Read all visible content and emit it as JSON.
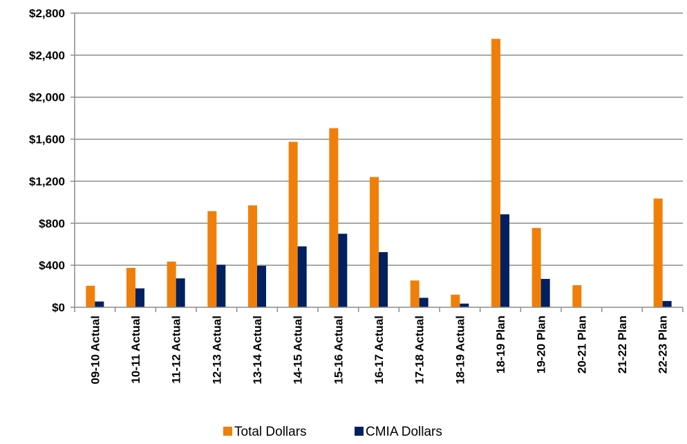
{
  "chart_data": {
    "type": "bar",
    "title": "",
    "xlabel": "",
    "ylabel": "",
    "ylim": [
      0,
      2800
    ],
    "yticks": [
      "$0",
      "$400",
      "$800",
      "$1,200",
      "$1,600",
      "$2,000",
      "$2,400",
      "$2,800"
    ],
    "ytick_values": [
      0,
      400,
      800,
      1200,
      1600,
      2000,
      2400,
      2800
    ],
    "grid": true,
    "legend_position": "bottom",
    "categories": [
      "09-10 Actual",
      "10-11 Actual",
      "11-12 Actual",
      "12-13 Actual",
      "13-14 Actual",
      "14-15 Actual",
      "15-16 Actual",
      "16-17 Actual",
      "17-18 Actual",
      "18-19 Actual",
      "18-19 Plan",
      "19-20 Plan",
      "20-21 Plan",
      "21-22 Plan",
      "22-23 Plan"
    ],
    "series": [
      {
        "name": "Total Dollars",
        "color": "#F07F09",
        "values": [
          205,
          375,
          435,
          915,
          970,
          1575,
          1705,
          1240,
          255,
          120,
          2555,
          755,
          210,
          0,
          1035
        ]
      },
      {
        "name": "CMIA Dollars",
        "color": "#002060",
        "values": [
          55,
          180,
          275,
          405,
          395,
          580,
          700,
          525,
          90,
          35,
          885,
          270,
          0,
          0,
          60
        ]
      }
    ]
  }
}
